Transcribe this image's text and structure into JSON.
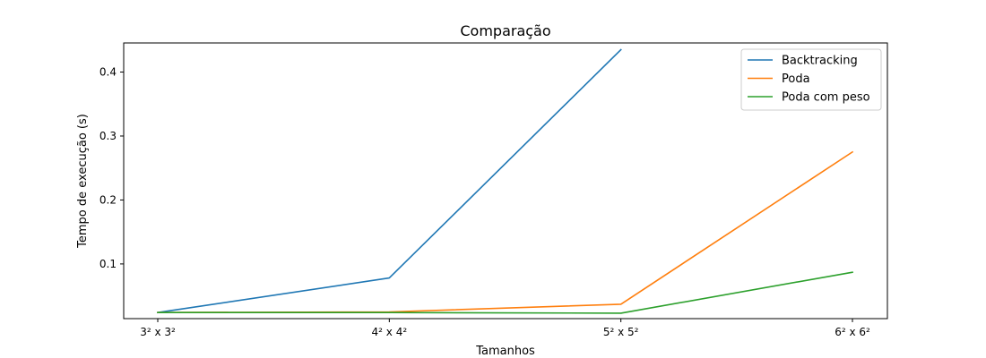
{
  "chart_data": {
    "type": "line",
    "title": "Comparação",
    "xlabel": "Tamanhos",
    "ylabel": "Tempo de execução (s)",
    "categories": [
      "3² x 3²",
      "4² x 4²",
      "5² x 5²",
      "6² x 6²"
    ],
    "yticks": [
      0.1,
      0.2,
      0.3,
      0.4
    ],
    "ylim": [
      0.0145,
      0.4455
    ],
    "grid": false,
    "legend_position": "top-right",
    "series": [
      {
        "name": "Backtracking",
        "color": "#1f77b4",
        "values": [
          0.024,
          0.078,
          0.435,
          null
        ]
      },
      {
        "name": "Poda",
        "color": "#ff7f0e",
        "values": [
          0.024,
          0.025,
          0.037,
          0.275
        ]
      },
      {
        "name": "Poda com peso",
        "color": "#2ca02c",
        "values": [
          0.024,
          0.024,
          0.023,
          0.087
        ]
      }
    ]
  }
}
